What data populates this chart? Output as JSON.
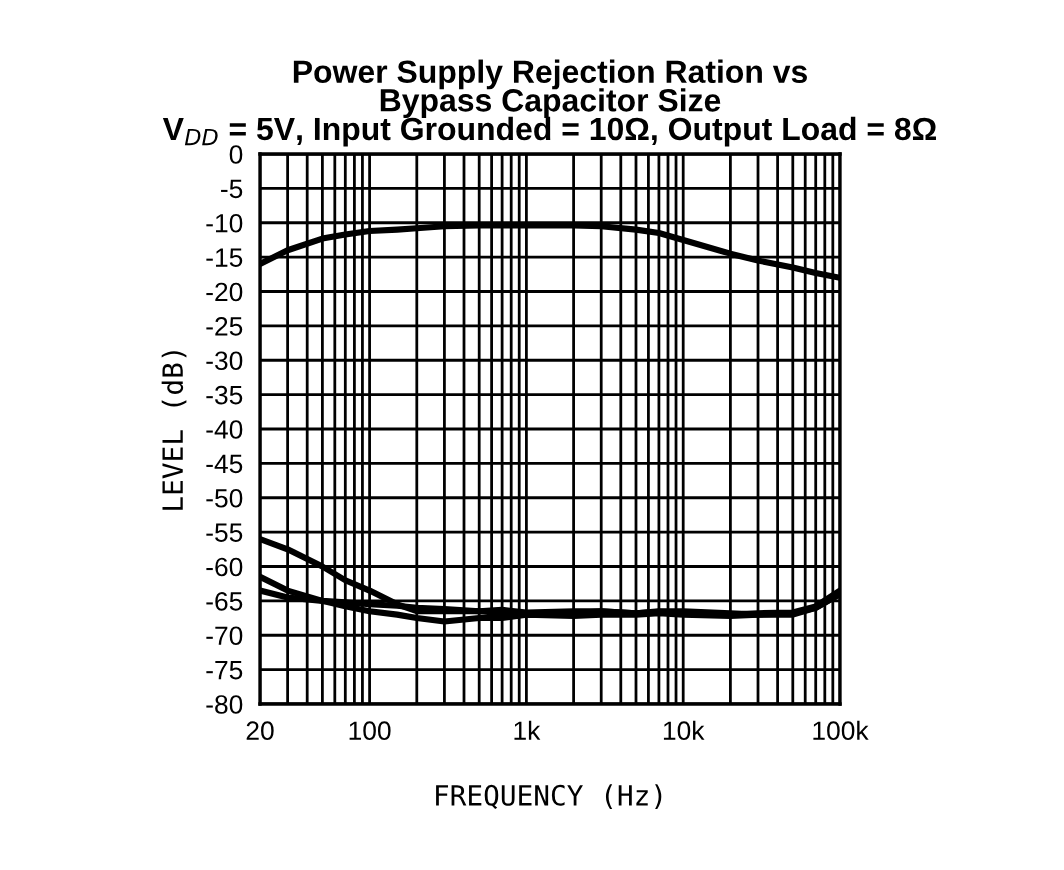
{
  "chart_data": {
    "type": "line",
    "title": "Power Supply Rejection Ration vs\nBypass Capacitor Size\nV$_{DD}$ = 5V, Input Grounded = 10Ω, Output Load = 8Ω",
    "xlabel": "FREQUENCY (Hz)",
    "ylabel": "LEVEL (dB)",
    "log": "x",
    "grid": true,
    "line_style": "solid",
    "marker": "none",
    "xlim": [
      20,
      100000
    ],
    "ylim": [
      -80,
      0
    ],
    "xticks": [
      20,
      {
        "value": 30,
        "label": null
      },
      {
        "value": 40,
        "label": null
      },
      {
        "value": 50,
        "label": null
      },
      {
        "value": 60,
        "label": null
      },
      {
        "value": 70,
        "label": null
      },
      {
        "value": 80,
        "label": null
      },
      {
        "value": 90,
        "label": null
      },
      100,
      {
        "value": 200,
        "label": null
      },
      {
        "value": 300,
        "label": null
      },
      {
        "value": 400,
        "label": null
      },
      {
        "value": 500,
        "label": null
      },
      {
        "value": 600,
        "label": null
      },
      {
        "value": 700,
        "label": null
      },
      {
        "value": 800,
        "label": null
      },
      {
        "value": 900,
        "label": null
      },
      {
        "value": 1000,
        "label": "1k"
      },
      {
        "value": 2000,
        "label": null
      },
      {
        "value": 3000,
        "label": null
      },
      {
        "value": 4000,
        "label": null
      },
      {
        "value": 5000,
        "label": null
      },
      {
        "value": 6000,
        "label": null
      },
      {
        "value": 7000,
        "label": null
      },
      {
        "value": 8000,
        "label": null
      },
      {
        "value": 9000,
        "label": null
      },
      {
        "value": 10000,
        "label": "10k"
      },
      {
        "value": 20000,
        "label": null
      },
      {
        "value": 30000,
        "label": null
      },
      {
        "value": 40000,
        "label": null
      },
      {
        "value": 50000,
        "label": null
      },
      {
        "value": 60000,
        "label": null
      },
      {
        "value": 70000,
        "label": null
      },
      {
        "value": 80000,
        "label": null
      },
      {
        "value": 90000,
        "label": null
      },
      {
        "value": 100000,
        "label": "100k"
      }
    ],
    "yticks": [
      0,
      -5,
      -10,
      -15,
      -20,
      -25,
      -30,
      -35,
      -40,
      -45,
      -50,
      -55,
      -60,
      -65,
      -70,
      -75,
      -80
    ],
    "x": [
      20,
      30,
      50,
      70,
      100,
      150,
      200,
      300,
      500,
      700,
      1000,
      2000,
      3000,
      5000,
      7000,
      10000,
      20000,
      30000,
      50000,
      70000,
      100000
    ],
    "series": [
      {
        "color": "#000000",
        "values": [
          -16,
          -14,
          -12.3,
          -11.7,
          -11.2,
          -11,
          -10.8,
          -10.5,
          -10.4,
          -10.4,
          -10.4,
          -10.4,
          -10.5,
          -11,
          -11.5,
          -12.5,
          -14.5,
          -15.5,
          -16.5,
          -17.3,
          -18
        ]
      },
      {
        "color": "#000000",
        "values": [
          -56,
          -57.5,
          -60,
          -62,
          -63.5,
          -65.5,
          -66.5,
          -66.5,
          -66.5,
          -66.8,
          -67,
          -66.8,
          -66.5,
          -66.8,
          -66.5,
          -66.5,
          -66.8,
          -67,
          -66.8,
          -66,
          -64
        ]
      },
      {
        "color": "#000000",
        "values": [
          -61.5,
          -63.5,
          -65,
          -65.8,
          -66.5,
          -67,
          -67.5,
          -68,
          -67.5,
          -67.5,
          -67,
          -67.2,
          -67,
          -67,
          -66.8,
          -67,
          -67.2,
          -67,
          -67,
          -66,
          -64
        ]
      },
      {
        "color": "#000000",
        "values": [
          -63.5,
          -64.5,
          -65,
          -65.2,
          -65.5,
          -65.7,
          -66,
          -66.2,
          -66.5,
          -66.3,
          -66.7,
          -66.5,
          -66.5,
          -66.8,
          -66.6,
          -66.7,
          -67,
          -66.8,
          -66.7,
          -65.8,
          -63.5
        ]
      }
    ]
  }
}
